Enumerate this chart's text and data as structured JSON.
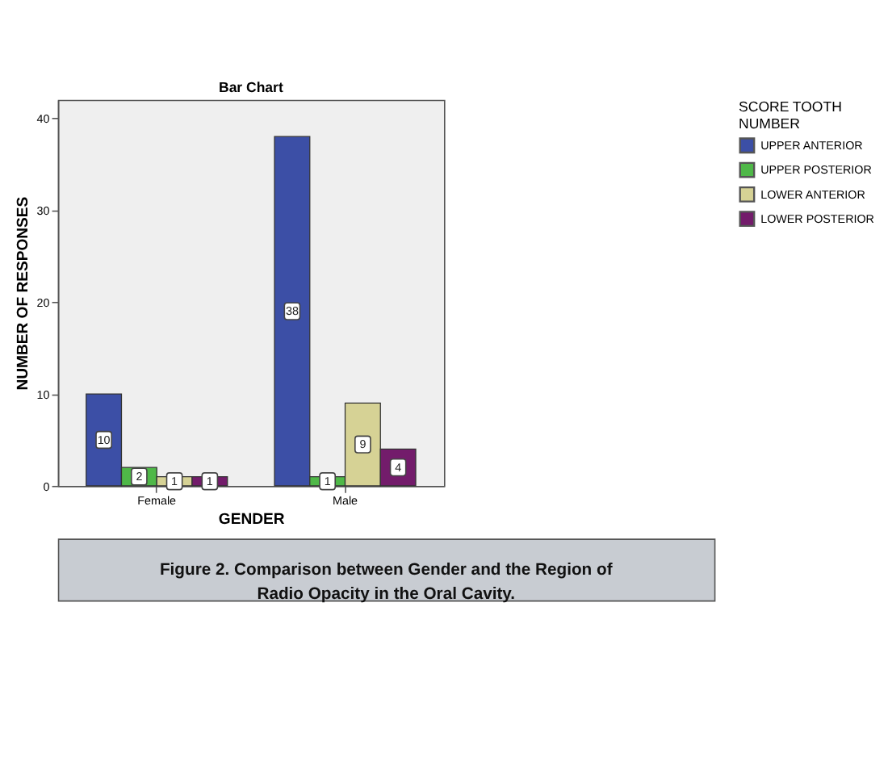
{
  "chart_data": {
    "type": "bar",
    "title": "Bar Chart",
    "xlabel": "GENDER",
    "ylabel": "NUMBER OF RESPONSES",
    "legend_title": "SCORE TOOTH NUMBER",
    "categories": [
      "Female",
      "Male"
    ],
    "series": [
      {
        "name": "UPPER ANTERIOR",
        "color": "#3c4fa6",
        "values": [
          10,
          38
        ]
      },
      {
        "name": "UPPER POSTERIOR",
        "color": "#4fb848",
        "values": [
          2,
          1
        ]
      },
      {
        "name": "LOWER ANTERIOR",
        "color": "#d6d295",
        "values": [
          1,
          9
        ]
      },
      {
        "name": "LOWER POSTERIOR",
        "color": "#731c6b",
        "values": [
          1,
          4
        ]
      }
    ],
    "ylim": [
      0,
      42
    ],
    "yticks": [
      0,
      10,
      20,
      30,
      40
    ],
    "grid": false,
    "legend": "top right",
    "data_labels": true,
    "annotations": [
      "Figure 2. Comparison between Gender and the Region of Radio Opacity in the Oral Cavity."
    ]
  }
}
